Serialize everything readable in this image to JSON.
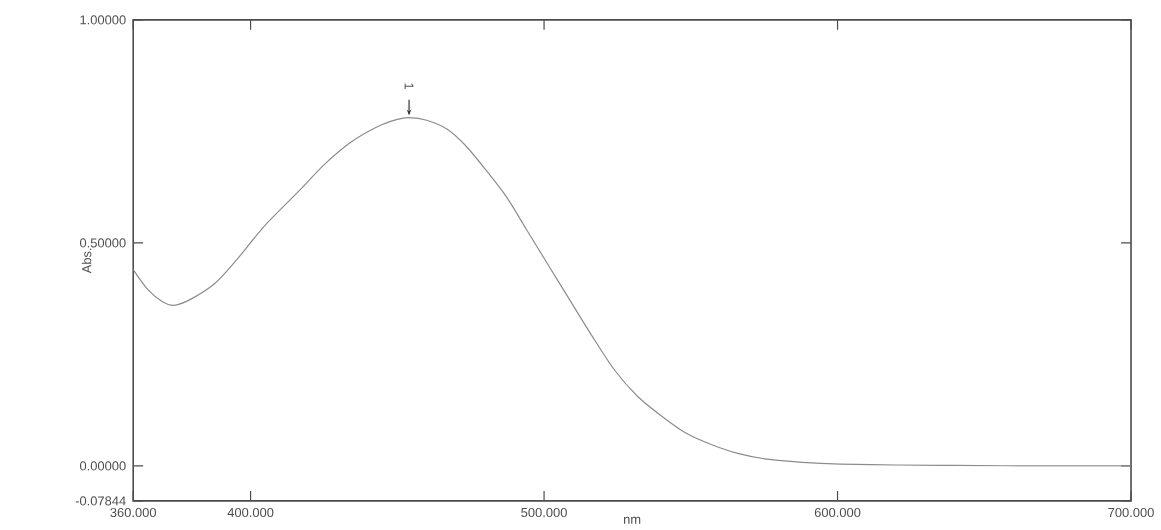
{
  "chart_data": {
    "type": "line",
    "xlabel": "nm",
    "ylabel": "Abs.",
    "x": [
      360,
      365,
      370,
      374,
      380,
      388,
      395,
      405,
      417,
      425,
      434,
      443,
      450,
      454,
      460,
      467,
      473,
      480,
      487,
      494,
      501,
      508,
      516,
      524,
      532,
      540,
      548,
      557,
      566,
      576,
      588,
      601,
      620,
      640,
      670,
      700
    ],
    "series": [
      {
        "color": "#8c8c8c",
        "values": [
          0.44,
          0.395,
          0.368,
          0.36,
          0.375,
          0.41,
          0.46,
          0.54,
          0.62,
          0.675,
          0.725,
          0.76,
          0.777,
          0.781,
          0.775,
          0.755,
          0.72,
          0.665,
          0.605,
          0.53,
          0.455,
          0.38,
          0.295,
          0.215,
          0.155,
          0.112,
          0.075,
          0.048,
          0.028,
          0.015,
          0.008,
          0.004,
          0.002,
          0.001,
          0,
          0
        ]
      }
    ],
    "xlim": [
      360,
      700
    ],
    "ylim": [
      -0.07844,
      1.0
    ],
    "xticks": [
      {
        "value": 360,
        "label": "360.000"
      },
      {
        "value": 400,
        "label": "400.000"
      },
      {
        "value": 500,
        "label": "500.000"
      },
      {
        "value": 600,
        "label": "600.000"
      },
      {
        "value": 700,
        "label": "700.000"
      }
    ],
    "yticks": [
      {
        "value": -0.07844,
        "label": "-0.07844"
      },
      {
        "value": 0,
        "label": "0.00000"
      },
      {
        "value": 0.5,
        "label": "0.50000"
      },
      {
        "value": 1.0,
        "label": "1.00000"
      }
    ],
    "annotations": [
      {
        "text": "1",
        "x": 454,
        "y": 0.781
      }
    ],
    "grid": false,
    "marker": "none",
    "line_style": "solid"
  }
}
